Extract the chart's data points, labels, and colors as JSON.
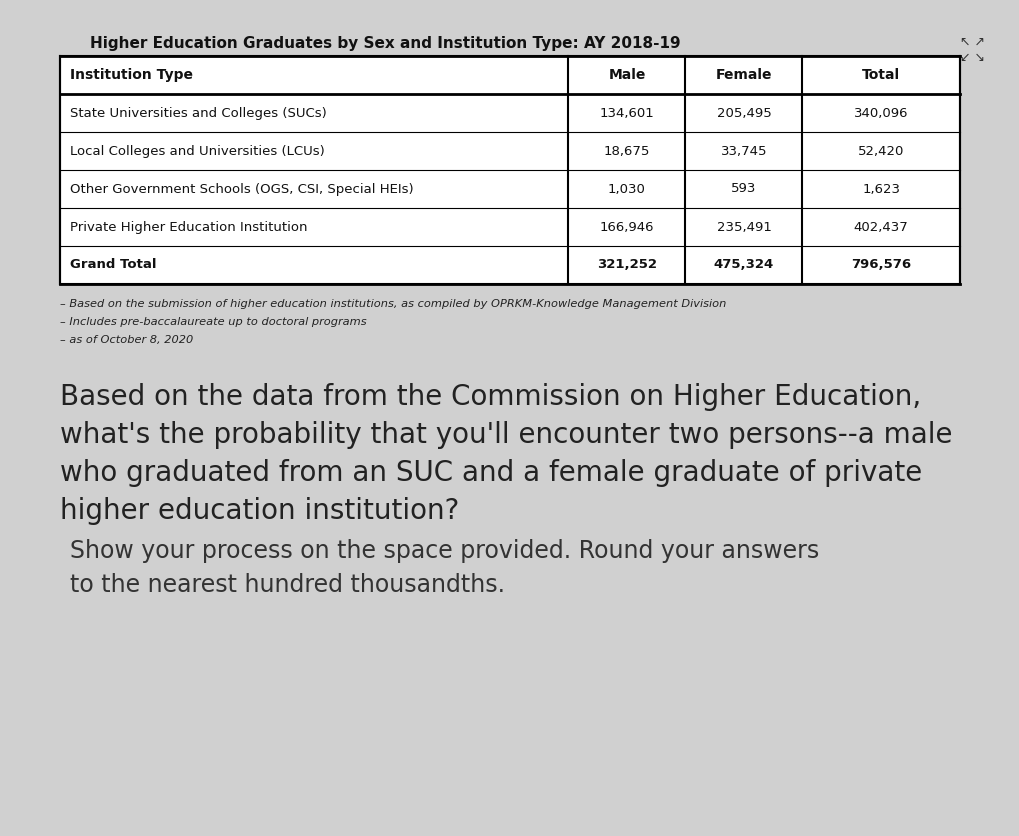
{
  "title": "Higher Education Graduates by Sex and Institution Type: AY 2018-19",
  "title_fontsize": 11,
  "background_color": "#d0d0d0",
  "table_headers": [
    "Institution Type",
    "Male",
    "Female",
    "Total"
  ],
  "table_rows": [
    [
      "State Universities and Colleges (SUCs)",
      "134,601",
      "205,495",
      "340,096"
    ],
    [
      "Local Colleges and Universities (LCUs)",
      "18,675",
      "33,745",
      "52,420"
    ],
    [
      "Other Government Schools (OGS, CSI, Special HEIs)",
      "1,030",
      "593",
      "1,623"
    ],
    [
      "Private Higher Education Institution",
      "166,946",
      "235,491",
      "402,437"
    ],
    [
      "Grand Total",
      "321,252",
      "475,324",
      "796,576"
    ]
  ],
  "footnote_lines": [
    "– Based on the submission of higher education institutions, as compiled by OPRKM-Knowledge Management Division",
    "– Includes pre-baccalaureate up to doctoral programs",
    "– as of October 8, 2020"
  ],
  "question_text": "Based on the data from the Commission on Higher Education,\nwhat's the probability that you'll encounter two persons--a male\nwho graduated from an SUC and a female graduate of private\nhigher education institution?",
  "instruction_text": "Show your process on the space provided. Round your answers\nto the nearest hundred thousandths.",
  "corner_symbol": "↖ ↗\n↙ ↘",
  "table_header_bg": "#ffffff",
  "table_row_bg": "#ffffff",
  "table_bold_row_bg": "#ffffff",
  "table_border_color": "#000000",
  "header_font_weight": "bold",
  "grand_total_font_weight": "bold"
}
